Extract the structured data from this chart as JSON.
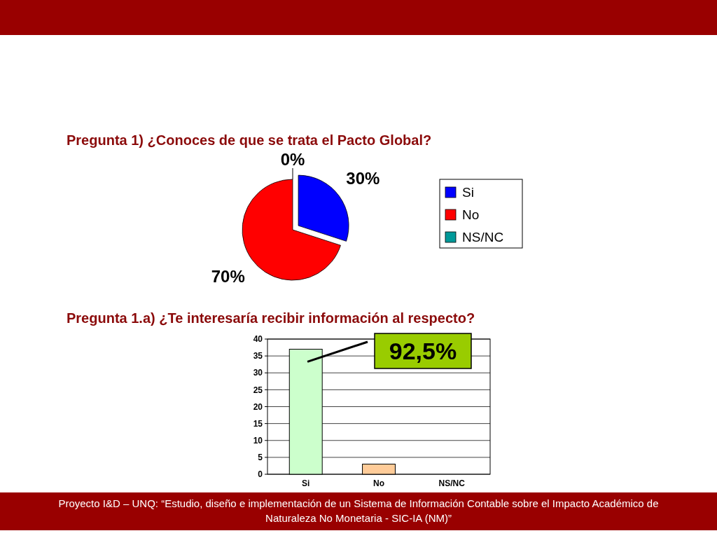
{
  "chart_data": [
    {
      "type": "pie",
      "title": "Pregunta 1) ¿Conoces de que se trata el Pacto Global?",
      "categories": [
        "Si",
        "No",
        "NS/NC"
      ],
      "values": [
        30,
        70,
        0
      ],
      "colors": [
        "#0000ff",
        "#ff0000",
        "#009999"
      ],
      "value_labels": [
        "30%",
        "70%",
        "0%"
      ],
      "legend": "right"
    },
    {
      "type": "bar",
      "title": "Pregunta 1.a) ¿Te interesaría recibir información al respecto?",
      "categories": [
        "Si",
        "No",
        "NS/NC"
      ],
      "values": [
        37,
        3,
        0
      ],
      "colors": [
        "#ccffcc",
        "#ffcc99",
        "#99cccc"
      ],
      "ylim": [
        0,
        40
      ],
      "yticks": [
        0,
        5,
        10,
        15,
        20,
        25,
        30,
        35,
        40
      ],
      "grid": "y",
      "annotations": [
        "92,5%",
        "Proyecto I&D – UNQ: “Estudio, diseño e implementación de un Sistema de Información Contable sobre el Impacto Académico de Naturaleza No Monetaria - SIC-IA (NM)”"
      ]
    }
  ]
}
